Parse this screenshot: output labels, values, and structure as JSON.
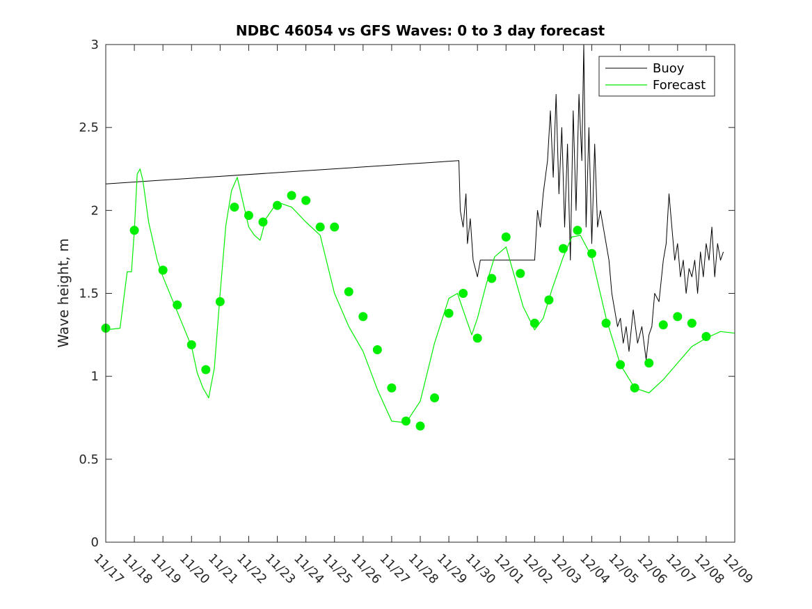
{
  "chart_data": {
    "type": "line",
    "title": "NDBC 46054 vs GFS Waves: 0 to 3 day forecast",
    "xlabel": "",
    "ylabel": "Wave height, m",
    "xlim": [
      0,
      22
    ],
    "ylim": [
      0,
      3
    ],
    "yticks": [
      0,
      0.5,
      1,
      1.5,
      2,
      2.5,
      3
    ],
    "ytick_labels": [
      "0",
      "0.5",
      "1",
      "1.5",
      "2",
      "2.5",
      "3"
    ],
    "xtick_labels": [
      "11/17",
      "11/18",
      "11/19",
      "11/20",
      "11/21",
      "11/22",
      "11/23",
      "11/24",
      "11/25",
      "11/26",
      "11/27",
      "11/28",
      "11/29",
      "11/30",
      "12/01",
      "12/02",
      "12/03",
      "12/04",
      "12/05",
      "12/06",
      "12/07",
      "12/08",
      "12/09"
    ],
    "legend": {
      "position": "top-right",
      "entries": [
        {
          "label": "Buoy",
          "color": "#000000"
        },
        {
          "label": "Forecast",
          "color": "#00ee00"
        }
      ]
    },
    "colors": {
      "buoy": "#000000",
      "forecast": "#00ee00",
      "markers": "#00ee00"
    },
    "series": [
      {
        "name": "Buoy",
        "x": [
          0,
          12.35,
          12.4,
          12.5,
          12.6,
          12.65,
          12.75,
          12.85,
          13.0,
          13.1,
          13.3,
          13.5,
          13.7,
          13.9,
          14.1,
          14.4,
          14.7,
          15.0,
          15.1,
          15.2,
          15.3,
          15.45,
          15.55,
          15.65,
          15.75,
          15.85,
          15.95,
          16.05,
          16.15,
          16.25,
          16.35,
          16.45,
          16.55,
          16.65,
          16.72,
          16.8,
          16.9,
          17.0,
          17.1,
          17.2,
          17.3,
          17.4,
          17.5,
          17.6,
          17.7,
          17.8,
          17.9,
          18.0,
          18.1,
          18.2,
          18.3,
          18.45,
          18.6,
          18.75,
          18.9,
          19.0,
          19.1,
          19.2,
          19.35,
          19.5,
          19.6,
          19.7,
          19.8,
          19.9,
          20.0,
          20.1,
          20.2,
          20.3,
          20.4,
          20.5,
          20.6,
          20.7,
          20.8,
          20.9,
          21.0,
          21.1,
          21.2,
          21.3,
          21.4,
          21.5,
          21.6
        ],
        "y": [
          2.16,
          2.3,
          2.0,
          1.9,
          2.1,
          1.8,
          1.95,
          1.7,
          1.6,
          1.7,
          1.7,
          1.7,
          1.7,
          1.7,
          1.7,
          1.7,
          1.7,
          1.7,
          2.0,
          1.9,
          2.1,
          2.3,
          2.6,
          2.2,
          2.7,
          2.1,
          2.5,
          1.9,
          2.4,
          1.7,
          2.6,
          2.0,
          2.7,
          2.3,
          3.0,
          1.9,
          2.5,
          1.8,
          2.4,
          1.9,
          2.0,
          1.9,
          1.8,
          1.7,
          1.5,
          1.4,
          1.3,
          1.35,
          1.2,
          1.3,
          1.15,
          1.4,
          1.2,
          1.3,
          1.1,
          1.25,
          1.3,
          1.5,
          1.45,
          1.7,
          1.8,
          2.1,
          1.9,
          1.7,
          1.8,
          1.6,
          1.7,
          1.5,
          1.65,
          1.6,
          1.7,
          1.5,
          1.75,
          1.6,
          1.8,
          1.7,
          1.9,
          1.6,
          1.8,
          1.7,
          1.75
        ]
      },
      {
        "name": "Forecast",
        "x": [
          0,
          0.5,
          0.75,
          0.9,
          1.0,
          1.1,
          1.2,
          1.3,
          1.5,
          1.8,
          2.0,
          2.5,
          3.0,
          3.2,
          3.4,
          3.6,
          3.8,
          4.0,
          4.2,
          4.4,
          4.6,
          4.8,
          5.0,
          5.2,
          5.4,
          5.6,
          6.0,
          6.5,
          7.0,
          7.5,
          8.0,
          8.5,
          9.0,
          9.5,
          10.0,
          10.5,
          11.0,
          11.5,
          12.0,
          12.3,
          12.6,
          12.8,
          13.0,
          13.3,
          13.6,
          14.0,
          14.3,
          14.6,
          15.0,
          15.3,
          15.6,
          16.0,
          16.3,
          16.6,
          17.0,
          17.5,
          18.0,
          18.5,
          19.0,
          19.5,
          20.0,
          20.5,
          21.0,
          21.5,
          22.0
        ],
        "y": [
          1.28,
          1.29,
          1.63,
          1.63,
          1.88,
          2.22,
          2.25,
          2.18,
          1.93,
          1.7,
          1.6,
          1.39,
          1.18,
          1.02,
          0.93,
          0.87,
          1.05,
          1.5,
          1.91,
          2.12,
          2.2,
          2.05,
          1.9,
          1.85,
          1.82,
          1.95,
          2.05,
          2.02,
          1.93,
          1.85,
          1.5,
          1.3,
          1.15,
          0.92,
          0.73,
          0.72,
          0.85,
          1.2,
          1.47,
          1.5,
          1.35,
          1.25,
          1.35,
          1.55,
          1.72,
          1.78,
          1.6,
          1.42,
          1.28,
          1.35,
          1.52,
          1.72,
          1.84,
          1.85,
          1.72,
          1.35,
          1.07,
          0.93,
          0.9,
          0.98,
          1.08,
          1.18,
          1.23,
          1.27,
          1.26
        ]
      }
    ],
    "markers": {
      "name": "Forecast analysis points",
      "x": [
        0,
        1,
        2,
        2.5,
        3,
        3.5,
        4,
        4.5,
        5,
        5.5,
        6,
        6.5,
        7,
        7.5,
        8,
        8.5,
        9,
        9.5,
        10,
        10.5,
        11,
        11.5,
        12,
        12.5,
        13,
        13.5,
        14,
        14.5,
        15,
        15.5,
        16,
        16.5,
        17,
        17.5,
        18,
        18.5,
        19,
        19.5,
        20,
        20.5,
        21
      ],
      "y": [
        1.29,
        1.88,
        1.64,
        1.43,
        1.19,
        1.04,
        1.45,
        2.02,
        1.97,
        1.93,
        2.03,
        2.09,
        2.06,
        1.9,
        1.9,
        1.51,
        1.36,
        1.16,
        0.93,
        0.73,
        0.7,
        0.87,
        1.38,
        1.5,
        1.23,
        1.59,
        1.84,
        1.62,
        1.32,
        1.46,
        1.77,
        1.88,
        1.74,
        1.32,
        1.07,
        0.93,
        1.08,
        1.31,
        1.36,
        1.32,
        1.24
      ]
    }
  }
}
